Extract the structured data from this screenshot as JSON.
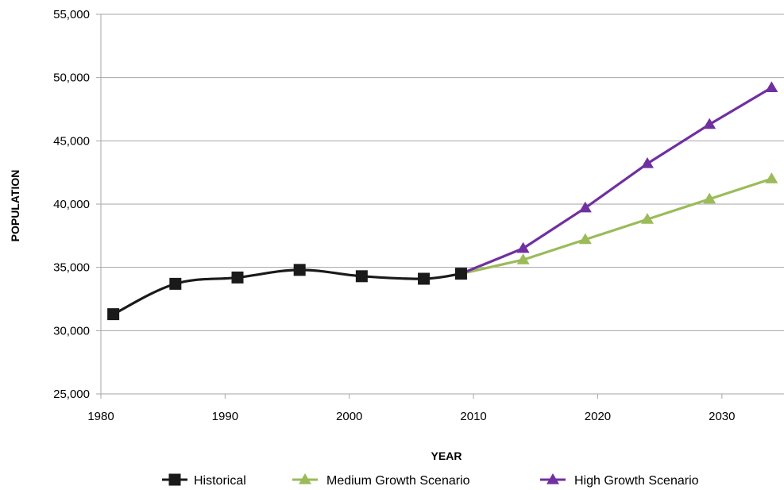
{
  "chart_data": {
    "type": "line",
    "title": "",
    "xlabel": "YEAR",
    "ylabel": "POPULATION",
    "xlim": [
      1980,
      2035
    ],
    "ylim": [
      25000,
      55000
    ],
    "x_ticks": [
      1980,
      1990,
      2000,
      2010,
      2020,
      2030
    ],
    "x_tick_labels": [
      "1980",
      "1990",
      "2000",
      "2010",
      "2020",
      "2030"
    ],
    "y_ticks": [
      25000,
      30000,
      35000,
      40000,
      45000,
      50000,
      55000
    ],
    "y_tick_labels": [
      "25,000",
      "30,000",
      "35,000",
      "40,000",
      "45,000",
      "50,000",
      "55,000"
    ],
    "grid": "horizontal",
    "legend_position": "bottom",
    "series": [
      {
        "name": "Historical",
        "color": "#1a1a1a",
        "marker": "square",
        "x": [
          1981,
          1986,
          1991,
          1996,
          2001,
          2006,
          2009
        ],
        "y": [
          31300,
          33700,
          34200,
          34800,
          34300,
          34100,
          34500
        ]
      },
      {
        "name": "Medium Growth Scenario",
        "color": "#9bbb59",
        "marker": "triangle",
        "x": [
          2009,
          2014,
          2019,
          2024,
          2029,
          2034
        ],
        "y": [
          34500,
          35600,
          37200,
          38800,
          40400,
          42000
        ]
      },
      {
        "name": "High Growth Scenario",
        "color": "#7030a0",
        "marker": "triangle",
        "x": [
          2009,
          2014,
          2019,
          2024,
          2029,
          2034
        ],
        "y": [
          34500,
          36500,
          39700,
          43200,
          46300,
          49200
        ]
      }
    ]
  }
}
